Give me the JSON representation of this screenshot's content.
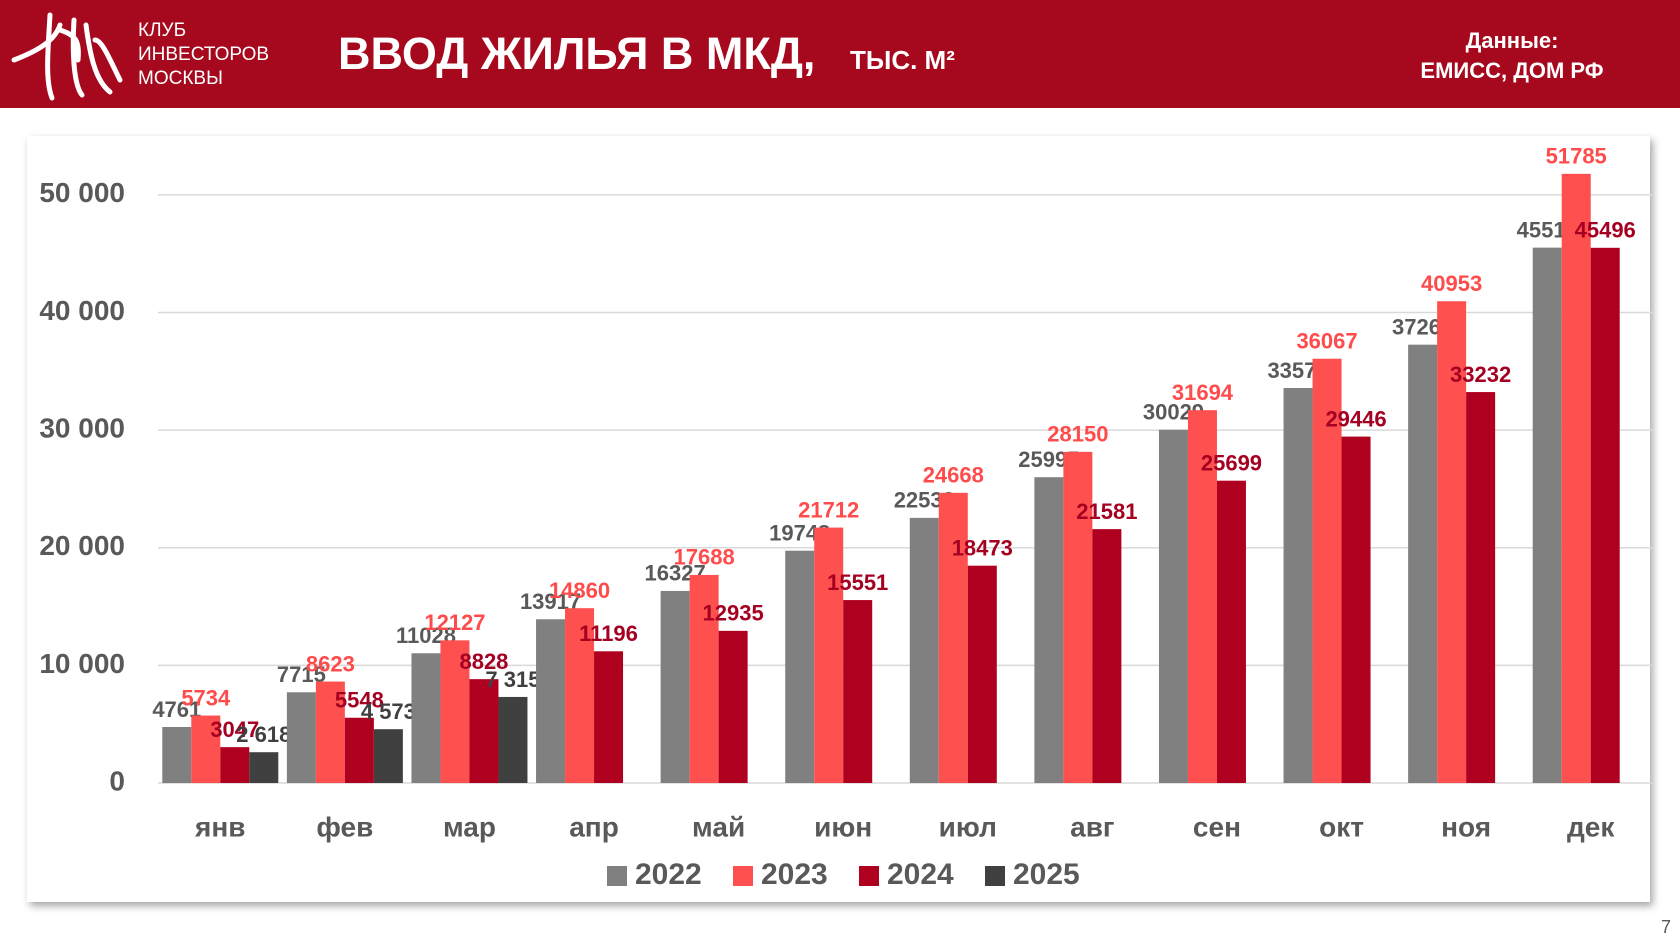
{
  "header": {
    "club": [
      "КЛУБ",
      "ИНВЕСТОРОВ",
      "МОСКВЫ"
    ],
    "title": "ВВОД ЖИЛЬЯ В МКД,",
    "subtitle": "ТЫС. М²",
    "source_label": "Данные:",
    "source": "ЕМИСС, ДОМ РФ"
  },
  "page_number": "7",
  "chart_data": {
    "type": "bar",
    "categories": [
      "янв",
      "фев",
      "мар",
      "апр",
      "май",
      "июн",
      "июл",
      "авг",
      "сен",
      "окт",
      "ноя",
      "дек"
    ],
    "series": [
      {
        "name": "2022",
        "color": "#808080",
        "label_color": "#595959",
        "values": [
          4761,
          7715,
          11028,
          13917,
          16327,
          19748,
          22539,
          25995,
          30029,
          33576,
          37261,
          45510
        ]
      },
      {
        "name": "2023",
        "color": "#ff5050",
        "label_color": "#ff4b4b",
        "values": [
          5734,
          8623,
          12127,
          14860,
          17688,
          21712,
          24668,
          28150,
          31694,
          36067,
          40953,
          51785
        ]
      },
      {
        "name": "2024",
        "color": "#b00020",
        "label_color": "#a50021",
        "values": [
          3047,
          5548,
          8828,
          11196,
          12935,
          15551,
          18473,
          21581,
          25699,
          29446,
          33232,
          45496
        ]
      },
      {
        "name": "2025",
        "color": "#404040",
        "label_color": "#404040",
        "values": [
          2618,
          4573,
          7315,
          null,
          null,
          null,
          null,
          null,
          null,
          null,
          null,
          null
        ],
        "value_labels": [
          "2 618",
          "4 573",
          "7 315",
          null,
          null,
          null,
          null,
          null,
          null,
          null,
          null,
          null
        ]
      }
    ],
    "ylim": [
      0,
      55000
    ],
    "yticks": [
      0,
      {
        "value": 10000,
        "label": "10 000"
      },
      {
        "value": 20000,
        "label": "20 000"
      },
      {
        "value": 30000,
        "label": "30 000"
      },
      {
        "value": 40000,
        "label": "40 000"
      },
      {
        "value": 50000,
        "label": "50 000"
      }
    ],
    "grid": true,
    "legend": "bottom"
  }
}
